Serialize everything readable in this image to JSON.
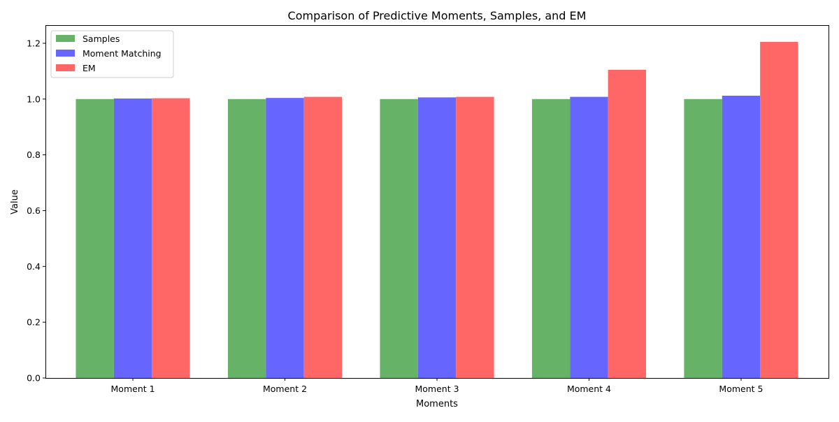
{
  "chart_data": {
    "type": "bar",
    "title": "Comparison of Predictive Moments, Samples, and EM",
    "xlabel": "Moments",
    "ylabel": "Value",
    "categories": [
      "Moment 1",
      "Moment 2",
      "Moment 3",
      "Moment 4",
      "Moment 5"
    ],
    "series": [
      {
        "name": "Samples",
        "color": "#66b266",
        "values": [
          1.0,
          1.0,
          1.0,
          1.0,
          1.0
        ]
      },
      {
        "name": "Moment Matching",
        "color": "#6666ff",
        "values": [
          1.002,
          1.004,
          1.006,
          1.008,
          1.012
        ]
      },
      {
        "name": "EM",
        "color": "#ff6666",
        "values": [
          1.003,
          1.008,
          1.008,
          1.105,
          1.205
        ]
      }
    ],
    "ylim": [
      0,
      1.265
    ],
    "yticks": [
      0.0,
      0.2,
      0.4,
      0.6,
      0.8,
      1.0,
      1.2
    ],
    "ytick_labels": [
      "0.0",
      "0.2",
      "0.4",
      "0.6",
      "0.8",
      "1.0",
      "1.2"
    ],
    "grid": false,
    "legend": "top-left"
  }
}
